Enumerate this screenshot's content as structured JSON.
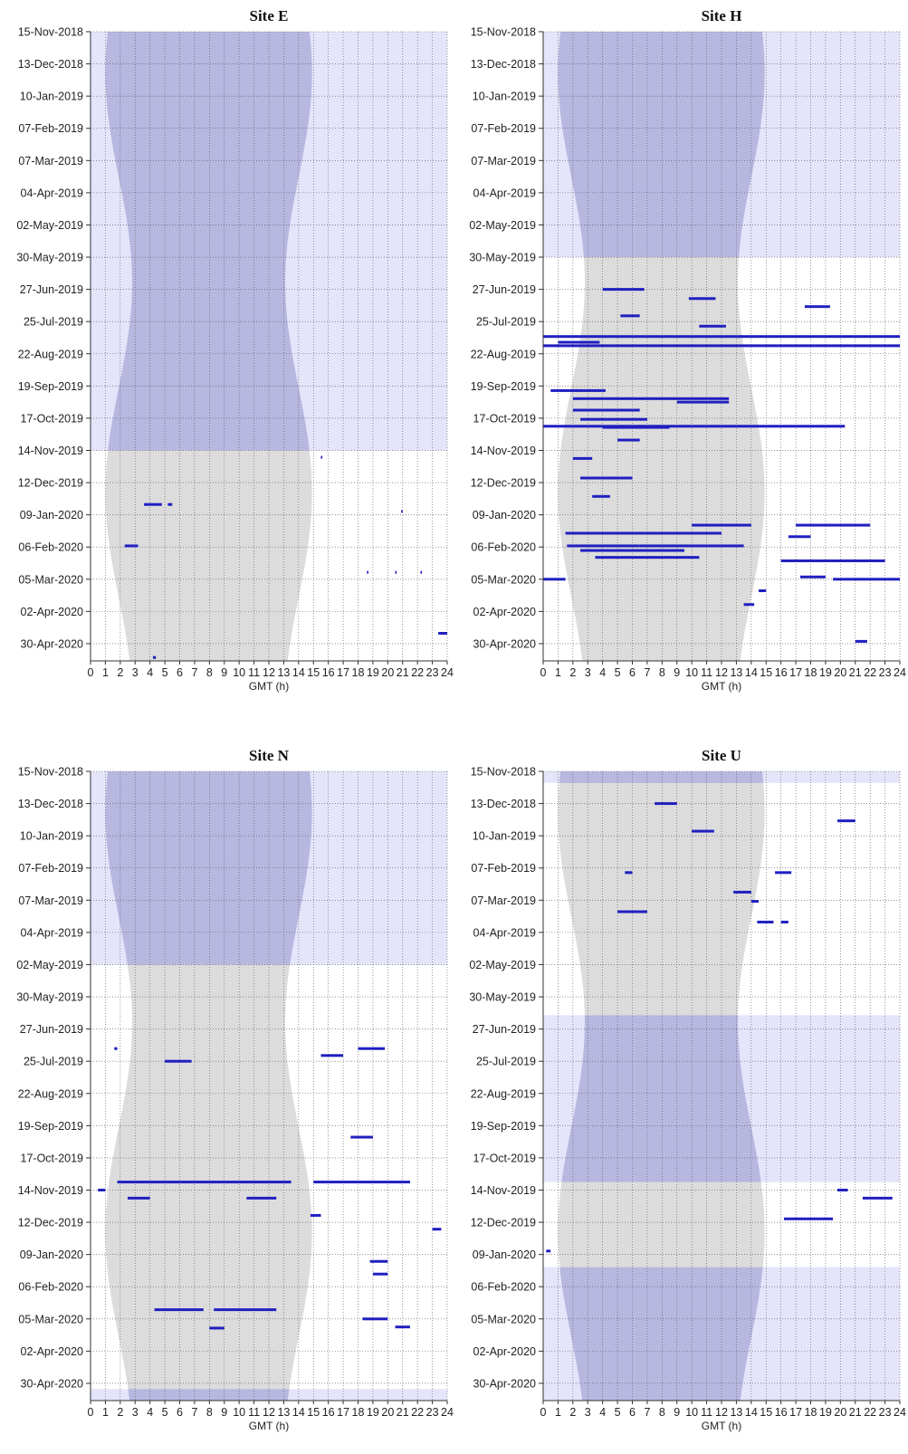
{
  "chart_data": [
    {
      "type": "heatmap",
      "title": "Site E",
      "xlabel": "GMT (h)",
      "ylabel": "",
      "xlim": [
        0,
        24
      ],
      "ylim": [
        "2018-11-15",
        "2020-05-15"
      ],
      "grid": true,
      "x_ticks": [
        "0",
        "1",
        "2",
        "3",
        "4",
        "5",
        "6",
        "7",
        "8",
        "9",
        "10",
        "11",
        "12",
        "13",
        "14",
        "15",
        "16",
        "17",
        "18",
        "19",
        "20",
        "21",
        "22",
        "23",
        "24"
      ],
      "y_ticks": [
        "15-Nov-2018",
        "13-Dec-2018",
        "10-Jan-2019",
        "07-Feb-2019",
        "07-Mar-2019",
        "04-Apr-2019",
        "02-May-2019",
        "30-May-2019",
        "27-Jun-2019",
        "25-Jul-2019",
        "22-Aug-2019",
        "19-Sep-2019",
        "17-Oct-2019",
        "14-Nov-2019",
        "12-Dec-2019",
        "09-Jan-2020",
        "06-Feb-2020",
        "05-Mar-2020",
        "02-Apr-2020",
        "30-Apr-2020"
      ],
      "no_data_periods": [
        [
          "2018-11-15",
          "2019-11-14"
        ]
      ],
      "detections": [
        {
          "start": "2019-12-31",
          "hours": [
            3.6,
            4.8
          ]
        },
        {
          "start": "2019-12-31",
          "hours": [
            5.2,
            5.5
          ]
        },
        {
          "start": "2020-02-05",
          "hours": [
            2.3,
            3.2
          ]
        },
        {
          "start": "2019-11-20",
          "hours": [
            15.5,
            15.6
          ]
        },
        {
          "start": "2020-01-06",
          "hours": [
            20.9,
            21.0
          ]
        },
        {
          "start": "2020-02-28",
          "hours": [
            18.6,
            18.7
          ]
        },
        {
          "start": "2020-02-28",
          "hours": [
            20.5,
            20.6
          ]
        },
        {
          "start": "2020-02-28",
          "hours": [
            22.2,
            22.3
          ]
        },
        {
          "start": "2020-04-21",
          "hours": [
            23.4,
            24.0
          ]
        },
        {
          "start": "2020-05-12",
          "hours": [
            4.2,
            4.4
          ]
        }
      ]
    },
    {
      "type": "heatmap",
      "title": "Site H",
      "xlabel": "GMT (h)",
      "ylabel": "",
      "xlim": [
        0,
        24
      ],
      "ylim": [
        "2018-11-15",
        "2020-05-15"
      ],
      "grid": true,
      "x_ticks": [
        "0",
        "1",
        "2",
        "3",
        "4",
        "5",
        "6",
        "7",
        "8",
        "9",
        "10",
        "11",
        "12",
        "13",
        "14",
        "15",
        "16",
        "17",
        "18",
        "19",
        "20",
        "21",
        "22",
        "23",
        "24"
      ],
      "y_ticks": [
        "15-Nov-2018",
        "13-Dec-2018",
        "10-Jan-2019",
        "07-Feb-2019",
        "07-Mar-2019",
        "04-Apr-2019",
        "02-May-2019",
        "30-May-2019",
        "27-Jun-2019",
        "25-Jul-2019",
        "22-Aug-2019",
        "19-Sep-2019",
        "17-Oct-2019",
        "14-Nov-2019",
        "12-Dec-2019",
        "09-Jan-2020",
        "06-Feb-2020",
        "05-Mar-2020",
        "02-Apr-2020",
        "30-Apr-2020"
      ],
      "no_data_periods": [
        [
          "2018-11-15",
          "2019-05-30"
        ]
      ],
      "detections": [
        {
          "start": "2019-06-27",
          "hours": [
            4.0,
            6.8
          ]
        },
        {
          "start": "2019-07-05",
          "hours": [
            9.8,
            11.6
          ]
        },
        {
          "start": "2019-07-12",
          "hours": [
            17.6,
            19.3
          ]
        },
        {
          "start": "2019-07-20",
          "hours": [
            5.2,
            6.5
          ]
        },
        {
          "start": "2019-07-29",
          "hours": [
            10.5,
            12.3
          ]
        },
        {
          "start": "2019-08-07",
          "hours": [
            0.0,
            24.0
          ]
        },
        {
          "start": "2019-08-12",
          "hours": [
            1.0,
            3.8
          ]
        },
        {
          "start": "2019-08-15",
          "hours": [
            0.0,
            24.0
          ]
        },
        {
          "start": "2019-09-23",
          "hours": [
            0.5,
            4.2
          ]
        },
        {
          "start": "2019-09-30",
          "hours": [
            2.0,
            12.5
          ]
        },
        {
          "start": "2019-10-03",
          "hours": [
            9.0,
            12.5
          ]
        },
        {
          "start": "2019-10-10",
          "hours": [
            2.0,
            6.5
          ]
        },
        {
          "start": "2019-10-18",
          "hours": [
            2.5,
            7.0
          ]
        },
        {
          "start": "2019-10-24",
          "hours": [
            0.0,
            20.3
          ]
        },
        {
          "start": "2019-10-25",
          "hours": [
            4.0,
            8.5
          ]
        },
        {
          "start": "2019-11-05",
          "hours": [
            5.0,
            6.5
          ]
        },
        {
          "start": "2019-11-21",
          "hours": [
            2.0,
            3.3
          ]
        },
        {
          "start": "2019-12-08",
          "hours": [
            2.5,
            6.0
          ]
        },
        {
          "start": "2019-12-24",
          "hours": [
            3.3,
            4.5
          ]
        },
        {
          "start": "2020-01-18",
          "hours": [
            10.0,
            14.0
          ]
        },
        {
          "start": "2020-01-18",
          "hours": [
            17.0,
            22.0
          ]
        },
        {
          "start": "2020-01-25",
          "hours": [
            1.5,
            12.0
          ]
        },
        {
          "start": "2020-01-28",
          "hours": [
            16.5,
            18.0
          ]
        },
        {
          "start": "2020-02-05",
          "hours": [
            1.6,
            6.5
          ]
        },
        {
          "start": "2020-02-05",
          "hours": [
            6.5,
            13.5
          ]
        },
        {
          "start": "2020-02-09",
          "hours": [
            2.5,
            9.5
          ]
        },
        {
          "start": "2020-02-15",
          "hours": [
            3.5,
            10.5
          ]
        },
        {
          "start": "2020-02-18",
          "hours": [
            16.0,
            23.0
          ]
        },
        {
          "start": "2020-03-05",
          "hours": [
            0.0,
            1.5
          ]
        },
        {
          "start": "2020-03-03",
          "hours": [
            17.3,
            19.0
          ]
        },
        {
          "start": "2020-03-05",
          "hours": [
            19.5,
            24.0
          ]
        },
        {
          "start": "2020-03-15",
          "hours": [
            14.5,
            15.0
          ]
        },
        {
          "start": "2020-03-27",
          "hours": [
            13.5,
            14.2
          ]
        },
        {
          "start": "2020-04-28",
          "hours": [
            21.0,
            21.8
          ]
        }
      ]
    },
    {
      "type": "heatmap",
      "title": "Site N",
      "xlabel": "GMT (h)",
      "ylabel": "",
      "xlim": [
        0,
        24
      ],
      "ylim": [
        "2018-11-15",
        "2020-05-15"
      ],
      "grid": true,
      "x_ticks": [
        "0",
        "1",
        "2",
        "3",
        "4",
        "5",
        "6",
        "7",
        "8",
        "9",
        "10",
        "11",
        "12",
        "13",
        "14",
        "15",
        "16",
        "17",
        "18",
        "19",
        "20",
        "21",
        "22",
        "23",
        "24"
      ],
      "y_ticks": [
        "15-Nov-2018",
        "13-Dec-2018",
        "10-Jan-2019",
        "07-Feb-2019",
        "07-Mar-2019",
        "04-Apr-2019",
        "02-May-2019",
        "30-May-2019",
        "27-Jun-2019",
        "25-Jul-2019",
        "22-Aug-2019",
        "19-Sep-2019",
        "17-Oct-2019",
        "14-Nov-2019",
        "12-Dec-2019",
        "09-Jan-2020",
        "06-Feb-2020",
        "05-Mar-2020",
        "02-Apr-2020",
        "30-Apr-2020"
      ],
      "no_data_periods": [
        [
          "2018-11-15",
          "2019-05-02"
        ],
        [
          "2020-05-05",
          "2020-05-15"
        ]
      ],
      "detections": [
        {
          "start": "2019-07-14",
          "hours": [
            1.6,
            1.8
          ]
        },
        {
          "start": "2019-07-20",
          "hours": [
            15.5,
            17.0
          ]
        },
        {
          "start": "2019-07-14",
          "hours": [
            18.0,
            19.8
          ]
        },
        {
          "start": "2019-07-25",
          "hours": [
            5.0,
            6.8
          ]
        },
        {
          "start": "2019-09-29",
          "hours": [
            17.5,
            19.0
          ]
        },
        {
          "start": "2019-11-07",
          "hours": [
            1.8,
            13.5
          ]
        },
        {
          "start": "2019-11-07",
          "hours": [
            15.0,
            21.5
          ]
        },
        {
          "start": "2019-11-14",
          "hours": [
            0.5,
            1.0
          ]
        },
        {
          "start": "2019-11-21",
          "hours": [
            2.5,
            4.0
          ]
        },
        {
          "start": "2019-11-21",
          "hours": [
            10.5,
            12.5
          ]
        },
        {
          "start": "2019-12-06",
          "hours": [
            14.8,
            15.5
          ]
        },
        {
          "start": "2019-12-18",
          "hours": [
            23.0,
            23.6
          ]
        },
        {
          "start": "2020-01-15",
          "hours": [
            18.8,
            20.0
          ]
        },
        {
          "start": "2020-01-26",
          "hours": [
            19.0,
            20.0
          ]
        },
        {
          "start": "2020-02-26",
          "hours": [
            4.3,
            7.6
          ]
        },
        {
          "start": "2020-02-26",
          "hours": [
            8.3,
            12.5
          ]
        },
        {
          "start": "2020-03-05",
          "hours": [
            18.3,
            20.0
          ]
        },
        {
          "start": "2020-03-13",
          "hours": [
            8.0,
            9.0
          ]
        },
        {
          "start": "2020-03-12",
          "hours": [
            20.5,
            21.5
          ]
        }
      ]
    },
    {
      "type": "heatmap",
      "title": "Site U",
      "xlabel": "GMT (h)",
      "ylabel": "",
      "xlim": [
        0,
        24
      ],
      "ylim": [
        "2018-11-15",
        "2020-05-15"
      ],
      "grid": true,
      "x_ticks": [
        "0",
        "1",
        "2",
        "3",
        "4",
        "5",
        "6",
        "7",
        "8",
        "9",
        "10",
        "11",
        "12",
        "13",
        "14",
        "15",
        "16",
        "17",
        "18",
        "19",
        "20",
        "21",
        "22",
        "23",
        "24"
      ],
      "y_ticks": [
        "15-Nov-2018",
        "13-Dec-2018",
        "10-Jan-2019",
        "07-Feb-2019",
        "07-Mar-2019",
        "04-Apr-2019",
        "02-May-2019",
        "30-May-2019",
        "27-Jun-2019",
        "25-Jul-2019",
        "22-Aug-2019",
        "19-Sep-2019",
        "17-Oct-2019",
        "14-Nov-2019",
        "12-Dec-2019",
        "09-Jan-2020",
        "06-Feb-2020",
        "05-Mar-2020",
        "02-Apr-2020",
        "30-Apr-2020"
      ],
      "no_data_periods": [
        [
          "2018-11-15",
          "2018-11-25"
        ],
        [
          "2019-06-15",
          "2019-11-07"
        ],
        [
          "2020-01-20",
          "2020-05-15"
        ]
      ],
      "detections": [
        {
          "start": "2018-12-13",
          "hours": [
            7.5,
            9.0
          ]
        },
        {
          "start": "2018-12-28",
          "hours": [
            19.8,
            21.0
          ]
        },
        {
          "start": "2019-01-06",
          "hours": [
            10.0,
            11.5
          ]
        },
        {
          "start": "2019-02-11",
          "hours": [
            5.5,
            6.0
          ]
        },
        {
          "start": "2019-02-11",
          "hours": [
            15.6,
            16.7
          ]
        },
        {
          "start": "2019-02-28",
          "hours": [
            12.8,
            14.0
          ]
        },
        {
          "start": "2019-03-08",
          "hours": [
            14.0,
            14.5
          ]
        },
        {
          "start": "2019-03-17",
          "hours": [
            5.0,
            7.0
          ]
        },
        {
          "start": "2019-03-26",
          "hours": [
            14.4,
            15.5
          ]
        },
        {
          "start": "2019-03-26",
          "hours": [
            16.0,
            16.5
          ]
        },
        {
          "start": "2019-11-14",
          "hours": [
            19.8,
            20.5
          ]
        },
        {
          "start": "2019-11-21",
          "hours": [
            21.5,
            23.5
          ]
        },
        {
          "start": "2019-12-09",
          "hours": [
            16.2,
            19.5
          ]
        },
        {
          "start": "2020-01-06",
          "hours": [
            0.2,
            0.5
          ]
        }
      ]
    }
  ]
}
